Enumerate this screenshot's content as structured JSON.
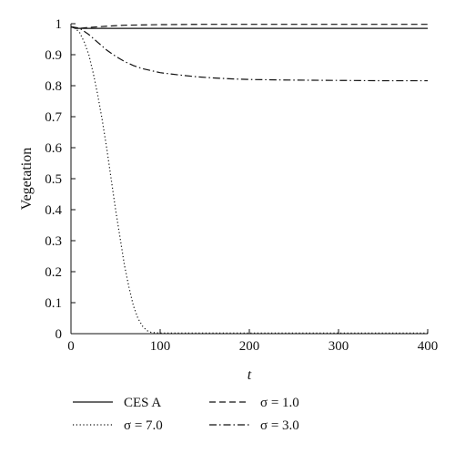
{
  "chart_data": {
    "type": "line",
    "xlabel": "t",
    "ylabel": "Vegetation",
    "xlim": [
      0,
      400
    ],
    "ylim": [
      0,
      1
    ],
    "xticks": [
      "0",
      "100",
      "200",
      "300",
      "400"
    ],
    "yticks": [
      "0",
      "0.1",
      "0.2",
      "0.3",
      "0.4",
      "0.5",
      "0.6",
      "0.7",
      "0.8",
      "0.9",
      "1"
    ],
    "grid": false,
    "legend_position": "bottom",
    "series": [
      {
        "name": "CES A",
        "style": "solid",
        "x": [
          0,
          5,
          10,
          20,
          50,
          100,
          200,
          300,
          400
        ],
        "y": [
          0.99,
          0.985,
          0.985,
          0.985,
          0.985,
          0.985,
          0.985,
          0.985,
          0.985
        ]
      },
      {
        "name": "σ = 1.0",
        "style": "dashed",
        "x": [
          0,
          10,
          20,
          40,
          60,
          100,
          150,
          200,
          300,
          400
        ],
        "y": [
          0.99,
          0.985,
          0.988,
          0.992,
          0.995,
          0.997,
          0.998,
          0.998,
          0.998,
          0.998
        ]
      },
      {
        "name": "σ = 7.0",
        "style": "dotted",
        "x": [
          0,
          5,
          10,
          15,
          20,
          25,
          30,
          35,
          40,
          45,
          50,
          55,
          60,
          65,
          70,
          75,
          80,
          85,
          90,
          100,
          150,
          200,
          300,
          400
        ],
        "y": [
          0.99,
          0.985,
          0.97,
          0.94,
          0.9,
          0.84,
          0.77,
          0.69,
          0.6,
          0.5,
          0.4,
          0.31,
          0.22,
          0.15,
          0.09,
          0.05,
          0.025,
          0.01,
          0.004,
          0.002,
          0.002,
          0.002,
          0.002,
          0.002
        ]
      },
      {
        "name": "σ = 3.0",
        "style": "dashdot",
        "x": [
          0,
          10,
          20,
          30,
          40,
          50,
          60,
          70,
          80,
          100,
          120,
          140,
          160,
          180,
          200,
          250,
          300,
          350,
          400
        ],
        "y": [
          0.99,
          0.985,
          0.965,
          0.94,
          0.915,
          0.895,
          0.878,
          0.865,
          0.855,
          0.842,
          0.835,
          0.829,
          0.825,
          0.822,
          0.82,
          0.818,
          0.817,
          0.816,
          0.816
        ]
      }
    ]
  }
}
